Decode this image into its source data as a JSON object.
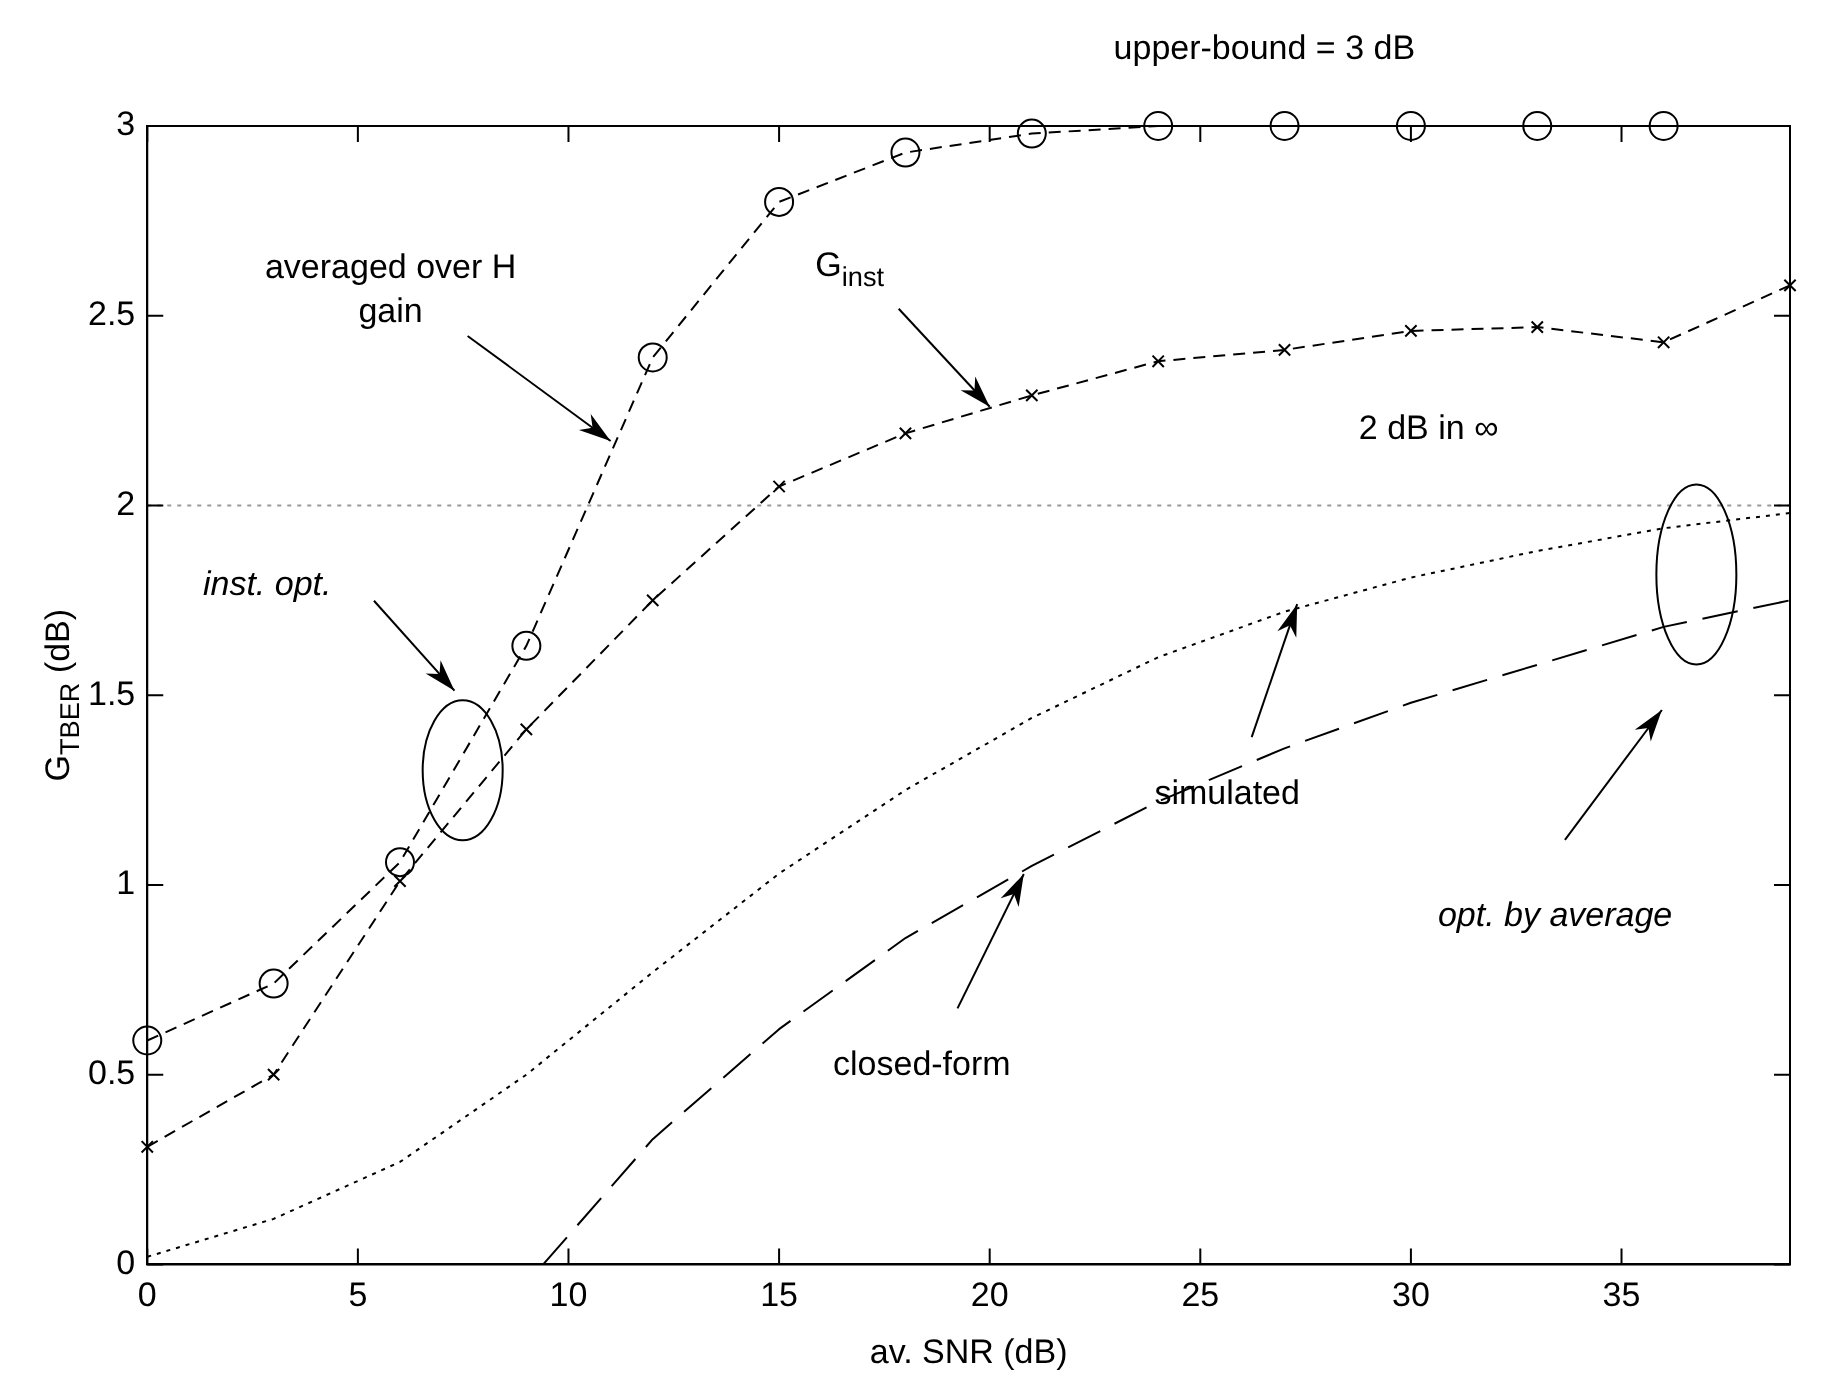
{
  "chart_data": {
    "type": "line",
    "xlabel": "av. SNR (dB)",
    "ylabel": "G$_{TBER}$ (dB)",
    "xlim": [
      0,
      39
    ],
    "xticks": [
      0,
      5,
      10,
      15,
      20,
      25,
      30,
      35
    ],
    "ylim": [
      0,
      3
    ],
    "yticks": [
      0,
      0.5,
      1,
      1.5,
      2,
      2.5,
      3
    ],
    "grid": false,
    "legend": false,
    "series": [
      {
        "color": "#000000",
        "marker": "circle",
        "line_style": "dashed",
        "x": [
          0,
          3,
          6,
          9,
          12,
          15,
          18,
          21,
          24,
          27,
          30,
          33,
          36
        ],
        "values": [
          0.59,
          0.74,
          1.06,
          1.63,
          2.39,
          2.8,
          2.93,
          2.98,
          3.0,
          3.0,
          3.0,
          3.0,
          3.0
        ]
      },
      {
        "color": "#000000",
        "marker": "cross",
        "line_style": "dashed",
        "x": [
          0,
          3,
          6,
          9,
          12,
          15,
          18,
          21,
          24,
          27,
          30,
          33,
          36,
          39
        ],
        "values": [
          0.31,
          0.5,
          1.01,
          1.41,
          1.75,
          2.05,
          2.19,
          2.29,
          2.38,
          2.41,
          2.46,
          2.47,
          2.43,
          2.58
        ]
      },
      {
        "color": "#000000",
        "marker": "none",
        "line_style": "dotted",
        "x": [
          0,
          3,
          6,
          9,
          12,
          15,
          18,
          21,
          24,
          27,
          30,
          33,
          36,
          39
        ],
        "values": [
          0.02,
          0.12,
          0.27,
          0.5,
          0.77,
          1.03,
          1.25,
          1.44,
          1.6,
          1.72,
          1.81,
          1.88,
          1.94,
          1.98
        ]
      },
      {
        "color": "#000000",
        "marker": "none",
        "line_style": "dashed",
        "x": [
          9.4,
          12,
          15,
          18,
          21,
          24,
          27,
          30,
          33,
          36,
          39
        ],
        "values": [
          0,
          0.33,
          0.62,
          0.86,
          1.05,
          1.22,
          1.36,
          1.48,
          1.58,
          1.68,
          1.75
        ]
      }
    ],
    "ref_lines": [
      {
        "axis": "y",
        "value": 2,
        "label": "2 dB in ∞",
        "color": "#999999",
        "line_style": "dotted"
      }
    ],
    "annotations": [
      "upper-bound = 3 dB",
      {
        "text": "averaged over H\ngain",
        "x": 11,
        "y": 2.17
      },
      {
        "text": "G$_{inst}$",
        "x": 20,
        "y": 2.26
      },
      "inst. opt.",
      {
        "text": "simulated",
        "x": 27.3,
        "y": 1.74
      },
      {
        "text": "closed-form",
        "x": 21,
        "y": 1.05
      },
      "opt. by average"
    ]
  }
}
